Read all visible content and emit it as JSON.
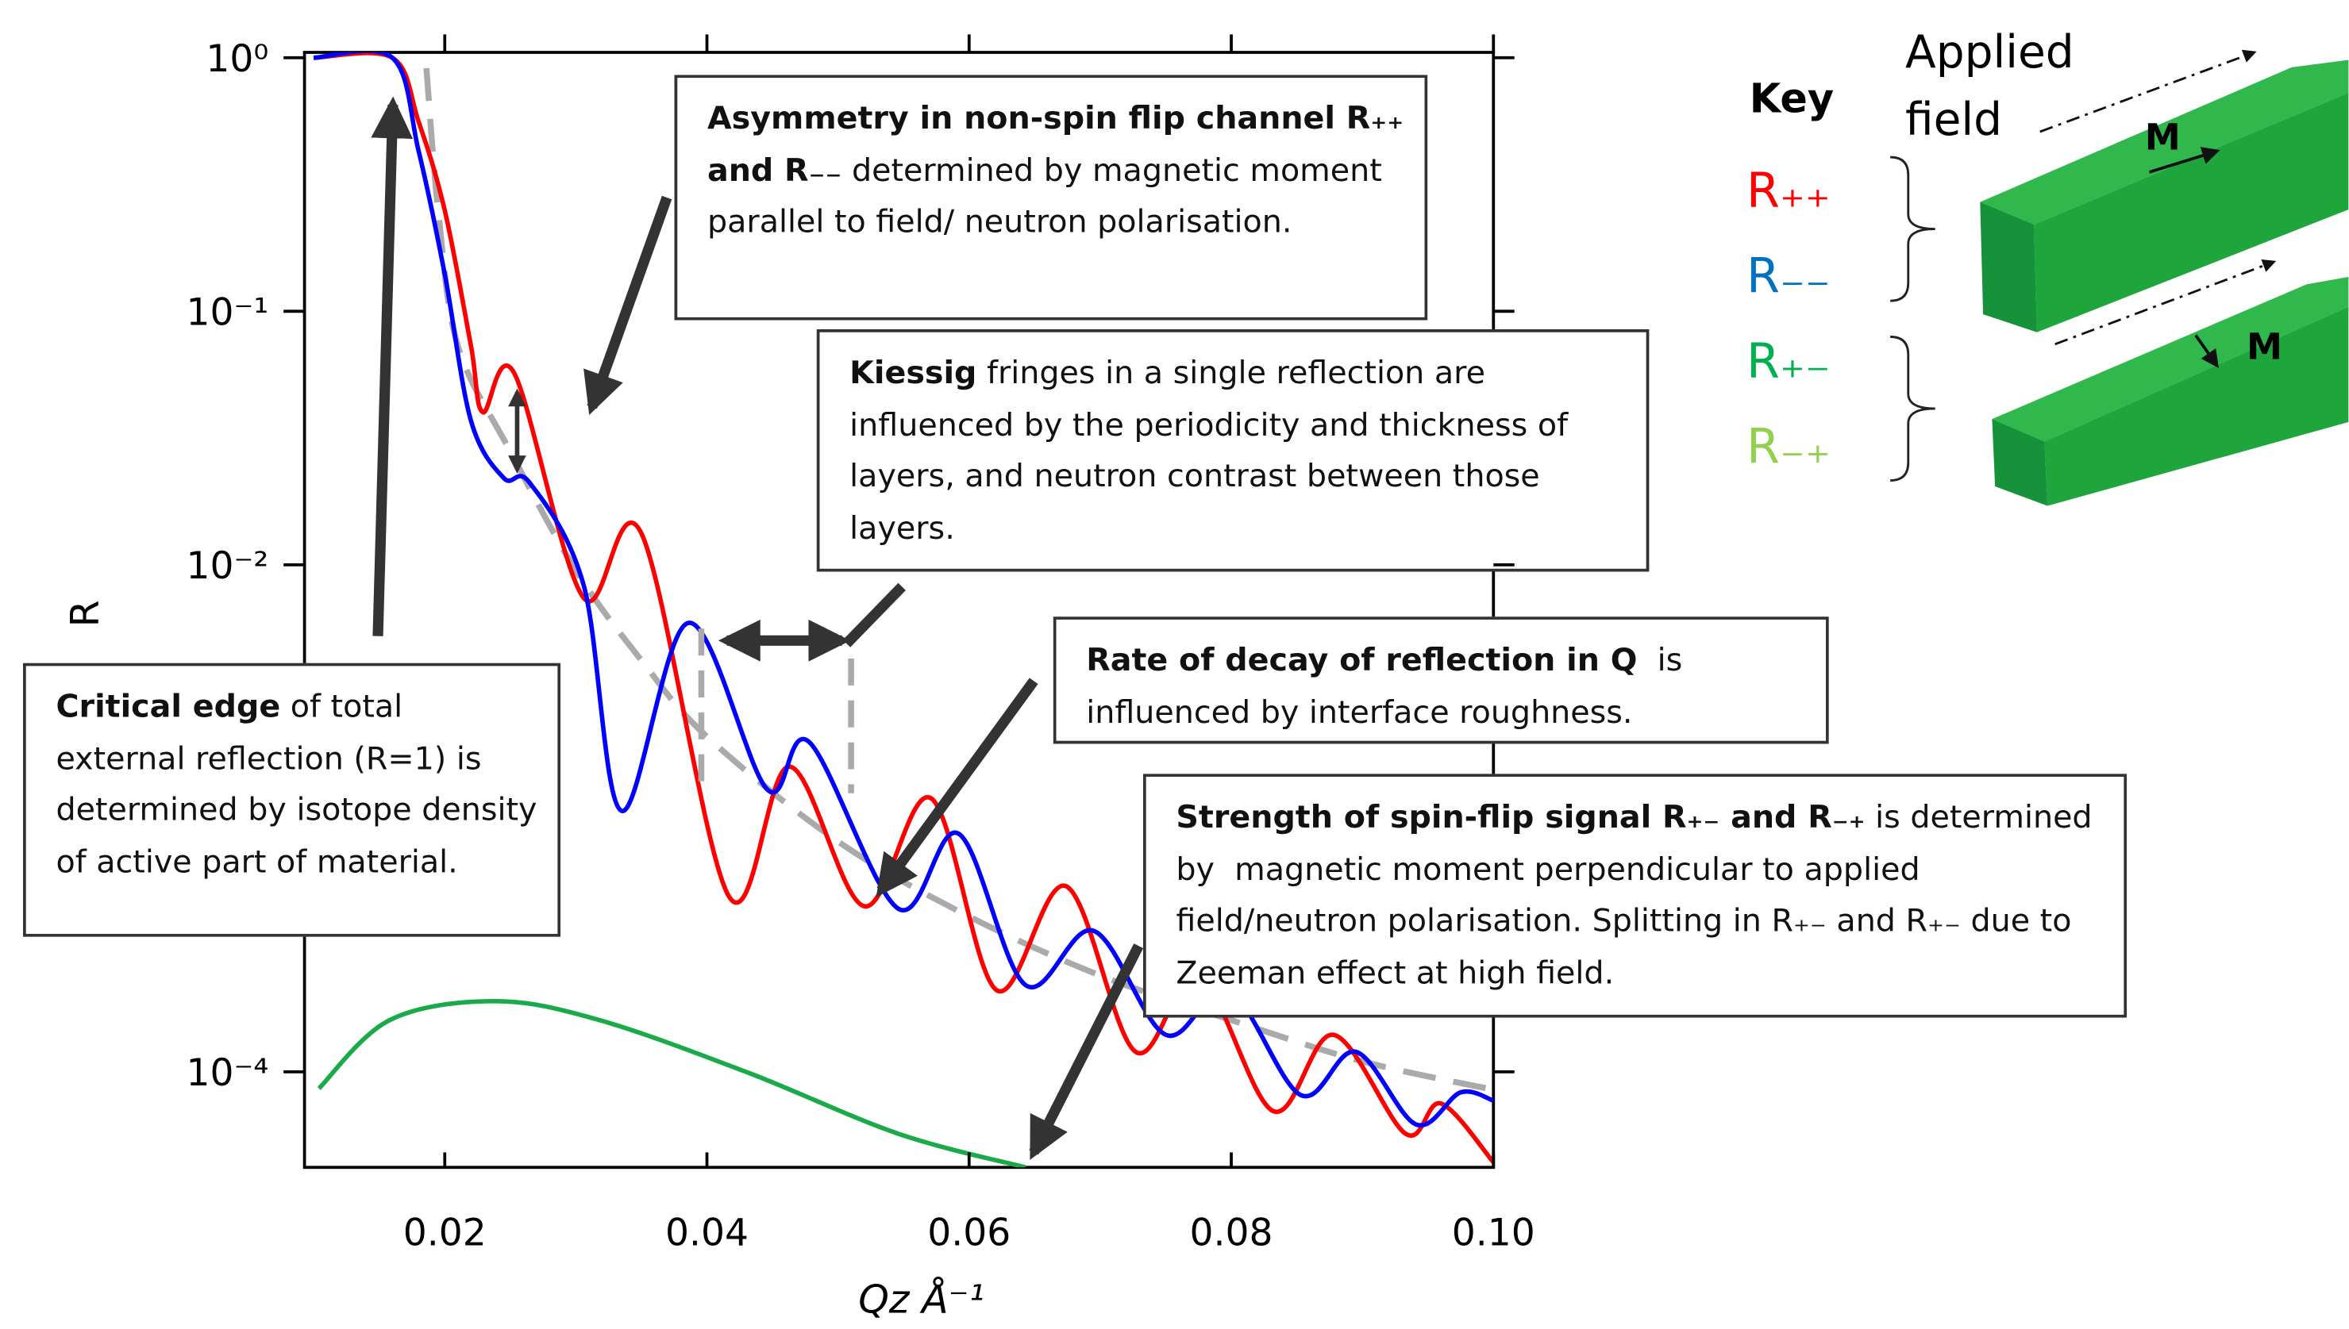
{
  "chart_data": {
    "type": "line",
    "x_label": "Qz Å⁻¹",
    "y_label": "R",
    "log_y": true,
    "xlim": [
      0.0093,
      0.1
    ],
    "ylim": [
      4.2e-05,
      1.05
    ],
    "xticks": [
      0.02,
      0.04,
      0.06,
      0.08,
      {
        "value": 0.1,
        "label": "0.10"
      }
    ],
    "yticks": [
      {
        "value": 1,
        "label": "10⁰"
      },
      {
        "value": 0.1,
        "label": "10⁻¹"
      },
      {
        "value": 0.01,
        "label": "10⁻²"
      },
      {
        "value": 0.0001,
        "label": "10⁻⁴"
      }
    ],
    "series": [
      {
        "color": "#ff0000",
        "dash": false,
        "x": [
          0.01,
          0.016,
          0.018,
          0.02,
          0.022,
          0.0229,
          0.0253,
          0.0306,
          0.035,
          0.0417,
          0.0463,
          0.052,
          0.0571,
          0.0621,
          0.0674,
          0.0727,
          0.0775,
          0.0832,
          0.0878,
          0.0933,
          0.096,
          0.1
        ],
        "values": [
          1,
          1,
          0.56,
          0.25,
          0.073,
          0.04,
          0.057,
          0.0074,
          0.0133,
          0.00049,
          0.0016,
          0.00045,
          0.0012,
          0.00021,
          0.00054,
          0.00012,
          0.00024,
          7e-05,
          0.00014,
          5.7e-05,
          7.5e-05,
          4.4e-05
        ]
      },
      {
        "color": "#0000ff",
        "dash": false,
        "x": [
          0.01,
          0.016,
          0.018,
          0.02,
          0.022,
          0.0245,
          0.0265,
          0.0306,
          0.0335,
          0.0386,
          0.0446,
          0.0478,
          0.0546,
          0.0592,
          0.0643,
          0.0695,
          0.075,
          0.0798,
          0.0853,
          0.0895,
          0.0941,
          0.0975,
          0.1
        ],
        "values": [
          1,
          1,
          0.43,
          0.14,
          0.037,
          0.022,
          0.021,
          0.0083,
          0.00107,
          0.0059,
          0.0013,
          0.002,
          0.00044,
          0.00087,
          0.00022,
          0.00036,
          0.00014,
          0.00021,
          8.1e-05,
          0.00012,
          6.2e-05,
          8.3e-05,
          7.7e-05
        ]
      },
      {
        "color": "#aaaaaa",
        "dash": true,
        "x": [
          0.0186,
          0.0195,
          0.021,
          0.025,
          0.03,
          0.035,
          0.04,
          0.05,
          0.06,
          0.07,
          0.08,
          0.09,
          0.1
        ],
        "values": [
          0.91,
          0.25,
          0.073,
          0.028,
          0.0095,
          0.0042,
          0.0021,
          0.00081,
          0.00041,
          0.00024,
          0.00016,
          0.00011,
          8.5e-05
        ]
      },
      {
        "color": "#1aaa4a",
        "dash": false,
        "x": [
          0.0104,
          0.0158,
          0.0238,
          0.0318,
          0.0432,
          0.0546,
          0.0643
        ],
        "values": [
          8.6e-05,
          0.00016,
          0.00019,
          0.00016,
          9.9e-05,
          5.7e-05,
          4.2e-05
        ]
      }
    ],
    "key_title": "Key",
    "key": [
      {
        "name": "R₊₊",
        "color": "#ff0000"
      },
      {
        "name": "R₋₋",
        "color": "#0070c0"
      },
      {
        "name": "R₊₋",
        "color": "#00b050"
      },
      {
        "name": "R₋₊",
        "color": "#92d050"
      }
    ],
    "field_label": [
      "Applied",
      "field"
    ],
    "moment_labels": [
      "M",
      "M"
    ],
    "annotations": [
      {
        "bold": "Asymmetry in non-spin flip channel R₊₊ and R₋₋",
        "text": " determined by magnetic moment parallel to field/ neutron polarisation."
      },
      {
        "bold": "Kiessig",
        "text": " fringes in a single reflection are influenced by the periodicity and thickness of layers, and neutron contrast between those layers."
      },
      {
        "bold": "Rate of decay of reflection in Q",
        "text": "  is influenced by interface roughness."
      },
      {
        "bold": "Strength of spin-flip signal R₊₋ and R₋₊",
        "text": " is determined by  magnetic moment perpendicular to applied field/neutron polarisation. Splitting in R₊₋ and R₊₋ due to Zeeman effect at high field."
      },
      {
        "bold": "Critical edge",
        "text": " of total external reflection (R=1) is determined by isotope density of active part of material."
      }
    ]
  }
}
